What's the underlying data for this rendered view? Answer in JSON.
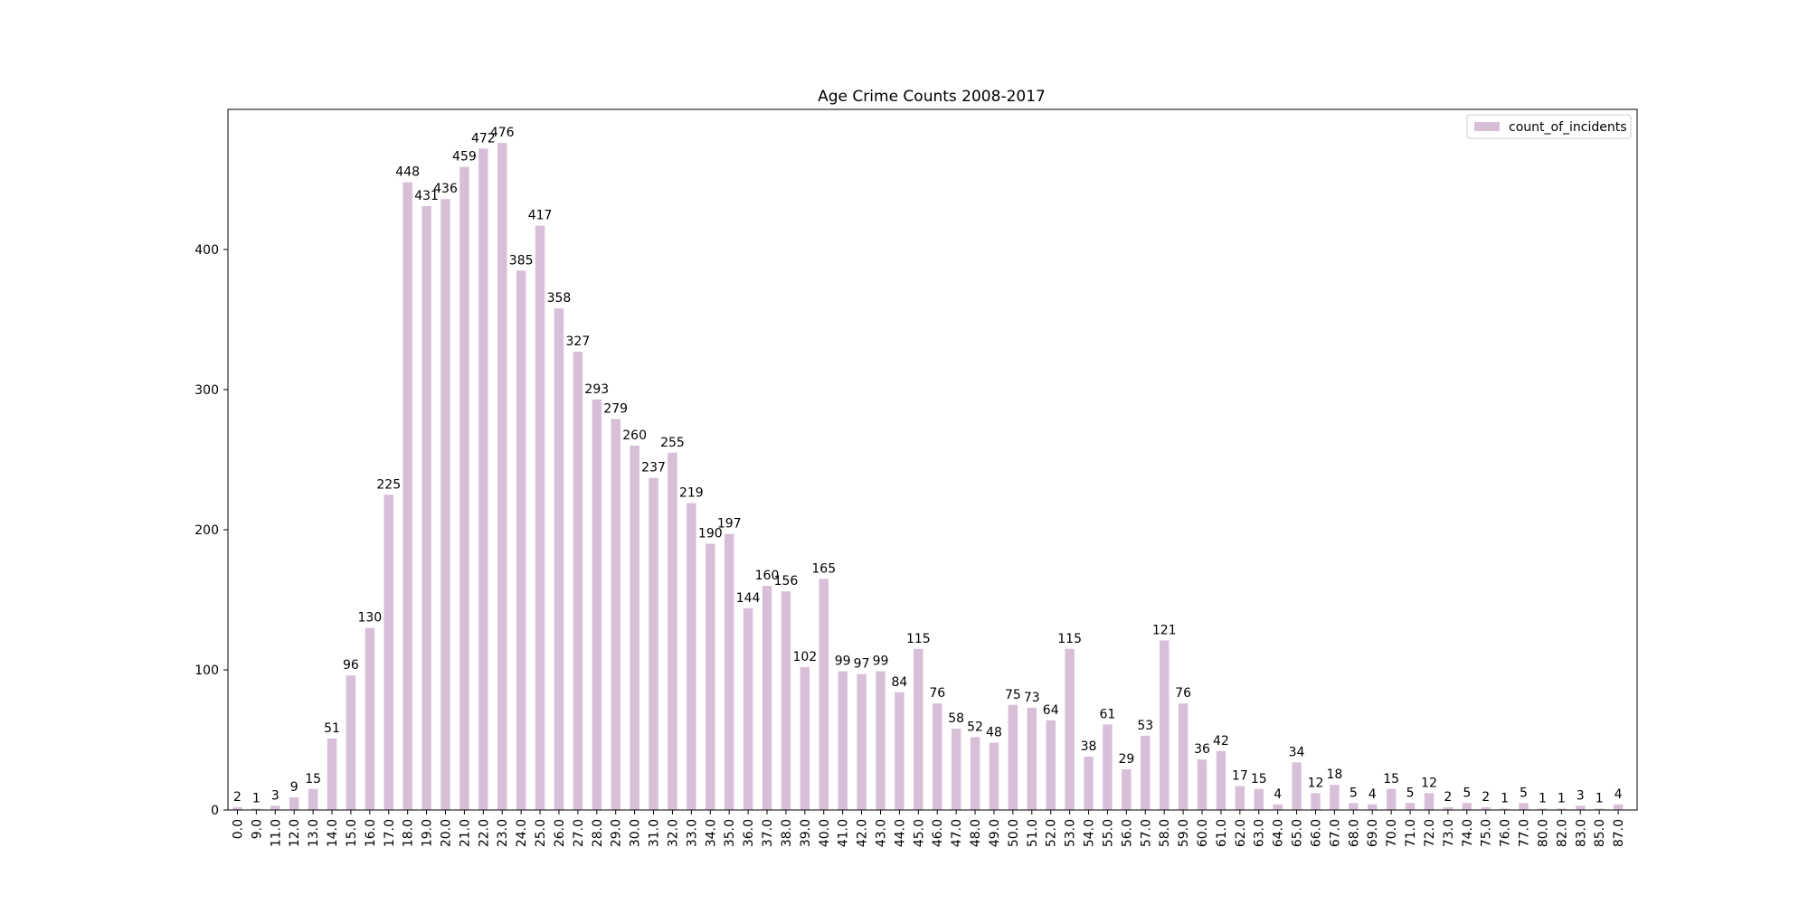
{
  "chart_data": {
    "type": "bar",
    "title": "Age Crime Counts 2008-2017",
    "xlabel": "",
    "ylabel": "",
    "categories": [
      "0.0",
      "9.0",
      "11.0",
      "12.0",
      "13.0",
      "14.0",
      "15.0",
      "16.0",
      "17.0",
      "18.0",
      "19.0",
      "20.0",
      "21.0",
      "22.0",
      "23.0",
      "24.0",
      "25.0",
      "26.0",
      "27.0",
      "28.0",
      "29.0",
      "30.0",
      "31.0",
      "32.0",
      "33.0",
      "34.0",
      "35.0",
      "36.0",
      "37.0",
      "38.0",
      "39.0",
      "40.0",
      "41.0",
      "42.0",
      "43.0",
      "44.0",
      "45.0",
      "46.0",
      "47.0",
      "48.0",
      "49.0",
      "50.0",
      "51.0",
      "52.0",
      "53.0",
      "54.0",
      "55.0",
      "56.0",
      "57.0",
      "58.0",
      "59.0",
      "60.0",
      "61.0",
      "62.0",
      "63.0",
      "64.0",
      "65.0",
      "66.0",
      "67.0",
      "68.0",
      "69.0",
      "70.0",
      "71.0",
      "72.0",
      "73.0",
      "74.0",
      "75.0",
      "76.0",
      "77.0",
      "80.0",
      "82.0",
      "83.0",
      "85.0",
      "87.0"
    ],
    "series": [
      {
        "name": "count_of_incidents",
        "color": "#d8bfd8",
        "values": [
          2,
          1,
          3,
          9,
          15,
          51,
          96,
          130,
          225,
          448,
          431,
          436,
          459,
          472,
          476,
          385,
          417,
          358,
          327,
          293,
          279,
          260,
          237,
          255,
          219,
          190,
          197,
          144,
          160,
          156,
          102,
          165,
          99,
          97,
          99,
          84,
          115,
          76,
          58,
          52,
          48,
          75,
          73,
          64,
          115,
          38,
          61,
          29,
          53,
          121,
          76,
          36,
          42,
          17,
          15,
          4,
          34,
          12,
          18,
          5,
          4,
          15,
          5,
          12,
          2,
          5,
          2,
          1,
          5,
          1,
          1,
          3,
          1,
          4
        ]
      }
    ],
    "yticks": [
      0,
      100,
      200,
      300,
      400
    ],
    "ylim": [
      0,
      500
    ],
    "grid": false,
    "legend": "top-right"
  }
}
